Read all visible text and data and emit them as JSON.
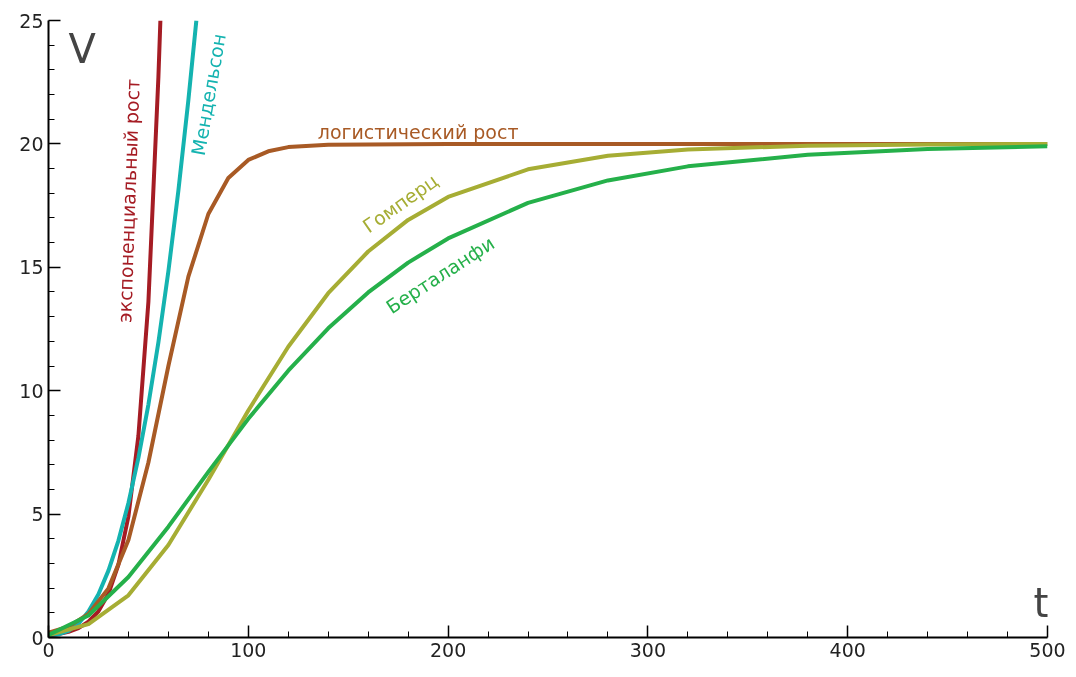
{
  "chart_data": {
    "type": "line",
    "xlabel": "t",
    "ylabel": "V",
    "xlim": [
      0,
      500
    ],
    "ylim": [
      0,
      25
    ],
    "xticks": [
      0,
      {
        "value": 20,
        "label": null
      },
      {
        "value": 40,
        "label": null
      },
      {
        "value": 60,
        "label": null
      },
      {
        "value": 80,
        "label": null
      },
      100,
      {
        "value": 120,
        "label": null
      },
      {
        "value": 140,
        "label": null
      },
      {
        "value": 160,
        "label": null
      },
      {
        "value": 180,
        "label": null
      },
      200,
      {
        "value": 220,
        "label": null
      },
      {
        "value": 240,
        "label": null
      },
      {
        "value": 260,
        "label": null
      },
      {
        "value": 280,
        "label": null
      },
      300,
      {
        "value": 320,
        "label": null
      },
      {
        "value": 340,
        "label": null
      },
      {
        "value": 360,
        "label": null
      },
      {
        "value": 380,
        "label": null
      },
      400,
      {
        "value": 420,
        "label": null
      },
      {
        "value": 440,
        "label": null
      },
      {
        "value": 460,
        "label": null
      },
      {
        "value": 480,
        "label": null
      },
      500
    ],
    "yticks": [
      0,
      {
        "value": 1,
        "label": null
      },
      {
        "value": 2,
        "label": null
      },
      {
        "value": 3,
        "label": null
      },
      {
        "value": 4,
        "label": null
      },
      5,
      {
        "value": 6,
        "label": null
      },
      {
        "value": 7,
        "label": null
      },
      {
        "value": 8,
        "label": null
      },
      {
        "value": 9,
        "label": null
      },
      10,
      {
        "value": 11,
        "label": null
      },
      {
        "value": 12,
        "label": null
      },
      {
        "value": 13,
        "label": null
      },
      {
        "value": 14,
        "label": null
      },
      15,
      {
        "value": 16,
        "label": null
      },
      {
        "value": 17,
        "label": null
      },
      {
        "value": 18,
        "label": null
      },
      {
        "value": 19,
        "label": null
      },
      20,
      {
        "value": 21,
        "label": null
      },
      {
        "value": 22,
        "label": null
      },
      {
        "value": 23,
        "label": null
      },
      {
        "value": 24,
        "label": null
      },
      25
    ],
    "grid": false,
    "marker": "none",
    "line_style": "solid",
    "series": [
      {
        "name": "экспоненциальный рост",
        "color": "#a51c24",
        "x": [
          0,
          5,
          10,
          15,
          20,
          25,
          30,
          35,
          40,
          45,
          50,
          55,
          56
        ],
        "values": [
          0.08,
          0.14,
          0.23,
          0.38,
          0.64,
          1.06,
          1.77,
          2.95,
          4.91,
          8.17,
          13.6,
          22.7,
          25
        ]
      },
      {
        "name": "Мендельсон",
        "color": "#14b3b0",
        "x": [
          0,
          5,
          10,
          15,
          20,
          25,
          30,
          35,
          40,
          45,
          50,
          55,
          60,
          65,
          70,
          74
        ],
        "values": [
          0.1,
          0.13,
          0.27,
          0.56,
          1.05,
          1.75,
          2.71,
          3.93,
          5.45,
          7.28,
          9.44,
          11.96,
          14.84,
          18.1,
          21.77,
          25
        ]
      },
      {
        "name": "логистический рост",
        "color": "#a85a25",
        "x": [
          0,
          10,
          20,
          30,
          40,
          50,
          60,
          70,
          80,
          90,
          100,
          110,
          120,
          140,
          200,
          500
        ],
        "values": [
          0.2,
          0.44,
          0.95,
          1.99,
          3.95,
          7.09,
          11.0,
          14.62,
          17.16,
          18.62,
          19.35,
          19.7,
          19.87,
          19.97,
          20,
          20
        ]
      },
      {
        "name": "Гомперц",
        "color": "#a6ad34",
        "x": [
          0,
          20,
          40,
          60,
          80,
          100,
          120,
          140,
          160,
          180,
          200,
          240,
          280,
          320,
          380,
          440,
          500
        ],
        "values": [
          0.1,
          0.54,
          1.71,
          3.75,
          6.39,
          9.2,
          11.78,
          13.95,
          15.64,
          16.92,
          17.85,
          18.97,
          19.52,
          19.77,
          19.93,
          19.98,
          20
        ]
      },
      {
        "name": "Берталанфи",
        "color": "#25b04a",
        "x": [
          0,
          20,
          40,
          60,
          80,
          100,
          120,
          140,
          160,
          180,
          200,
          240,
          280,
          320,
          380,
          440,
          500
        ],
        "values": [
          0.1,
          0.89,
          2.45,
          4.49,
          6.71,
          8.86,
          10.81,
          12.53,
          13.98,
          15.19,
          16.17,
          17.61,
          18.52,
          19.09,
          19.56,
          19.79,
          19.9
        ]
      }
    ]
  }
}
